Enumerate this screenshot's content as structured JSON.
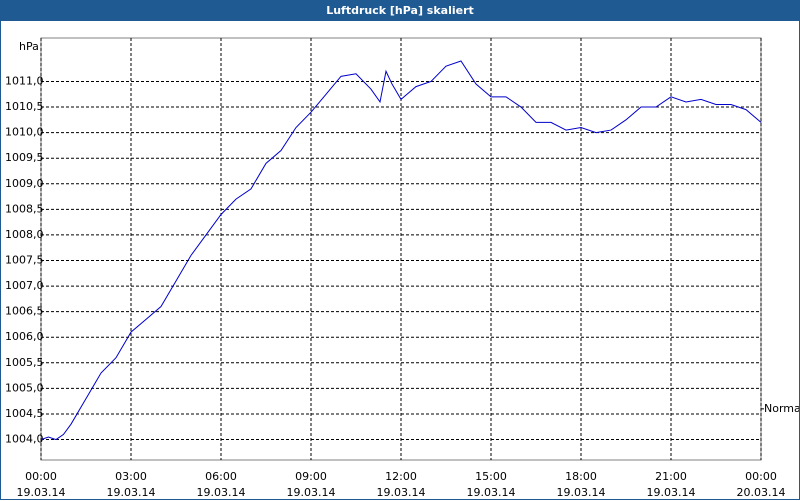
{
  "chart_data": {
    "type": "line",
    "title": "Luftdruck [hPa] skaliert",
    "y_label": "hPa",
    "x": [
      0,
      0.25,
      0.5,
      0.75,
      1,
      1.5,
      2,
      2.5,
      3,
      3.5,
      4,
      4.5,
      5,
      5.5,
      6,
      6.5,
      7,
      7.5,
      8,
      8.5,
      9,
      9.5,
      10,
      10.5,
      11,
      11.3,
      11.5,
      11.7,
      12,
      12.5,
      13,
      13.5,
      14,
      14.5,
      15,
      15.5,
      16,
      16.5,
      17,
      17.5,
      18,
      18.5,
      19,
      19.5,
      20,
      20.5,
      21,
      21.5,
      22,
      22.5,
      23,
      23.5,
      24
    ],
    "series": [
      {
        "name": "Luftdruck",
        "color": "#0000cc",
        "values": [
          1004.0,
          1004.05,
          1004.0,
          1004.1,
          1004.3,
          1004.8,
          1005.3,
          1005.6,
          1006.1,
          1006.35,
          1006.6,
          1007.1,
          1007.6,
          1008.0,
          1008.4,
          1008.7,
          1008.9,
          1009.4,
          1009.65,
          1010.1,
          1010.4,
          1010.75,
          1011.1,
          1011.15,
          1010.85,
          1010.6,
          1011.2,
          1010.95,
          1010.65,
          1010.9,
          1011.0,
          1011.3,
          1011.4,
          1010.95,
          1010.7,
          1010.7,
          1010.5,
          1010.2,
          1010.2,
          1010.05,
          1010.1,
          1010.0,
          1010.05,
          1010.25,
          1010.5,
          1010.5,
          1010.7,
          1010.6,
          1010.65,
          1010.55,
          1010.55,
          1010.45,
          1010.2
        ]
      }
    ],
    "xlim": [
      0,
      24
    ],
    "xticks": [
      {
        "value": 0,
        "label": "00:00\n19.03.14"
      },
      {
        "value": 3,
        "label": "03:00\n19.03.14"
      },
      {
        "value": 6,
        "label": "06:00\n19.03.14"
      },
      {
        "value": 9,
        "label": "09:00\n19.03.14"
      },
      {
        "value": 12,
        "label": "12:00\n19.03.14"
      },
      {
        "value": 15,
        "label": "15:00\n19.03.14"
      },
      {
        "value": 18,
        "label": "18:00\n19.03.14"
      },
      {
        "value": 21,
        "label": "21:00\n19.03.14"
      },
      {
        "value": 24,
        "label": "00:00\n20.03.14"
      }
    ],
    "ylim": [
      1003.6,
      1011.85
    ],
    "yticks": [
      {
        "value": 1004.0,
        "label": "1004,0"
      },
      {
        "value": 1004.5,
        "label": "1004,5"
      },
      {
        "value": 1005.0,
        "label": "1005,0"
      },
      {
        "value": 1005.5,
        "label": "1005,5"
      },
      {
        "value": 1006.0,
        "label": "1006,0"
      },
      {
        "value": 1006.5,
        "label": "1006,5"
      },
      {
        "value": 1007.0,
        "label": "1007,0"
      },
      {
        "value": 1007.5,
        "label": "1007,5"
      },
      {
        "value": 1008.0,
        "label": "1008,0"
      },
      {
        "value": 1008.5,
        "label": "1008,5"
      },
      {
        "value": 1009.0,
        "label": "1009,0"
      },
      {
        "value": 1009.5,
        "label": "1009,5"
      },
      {
        "value": 1010.0,
        "label": "1010,0"
      },
      {
        "value": 1010.5,
        "label": "1010,5"
      },
      {
        "value": 1011.0,
        "label": "1011,0"
      }
    ],
    "annotations": [
      {
        "text": "Normal",
        "y": 1004.6
      }
    ],
    "grid": true
  }
}
